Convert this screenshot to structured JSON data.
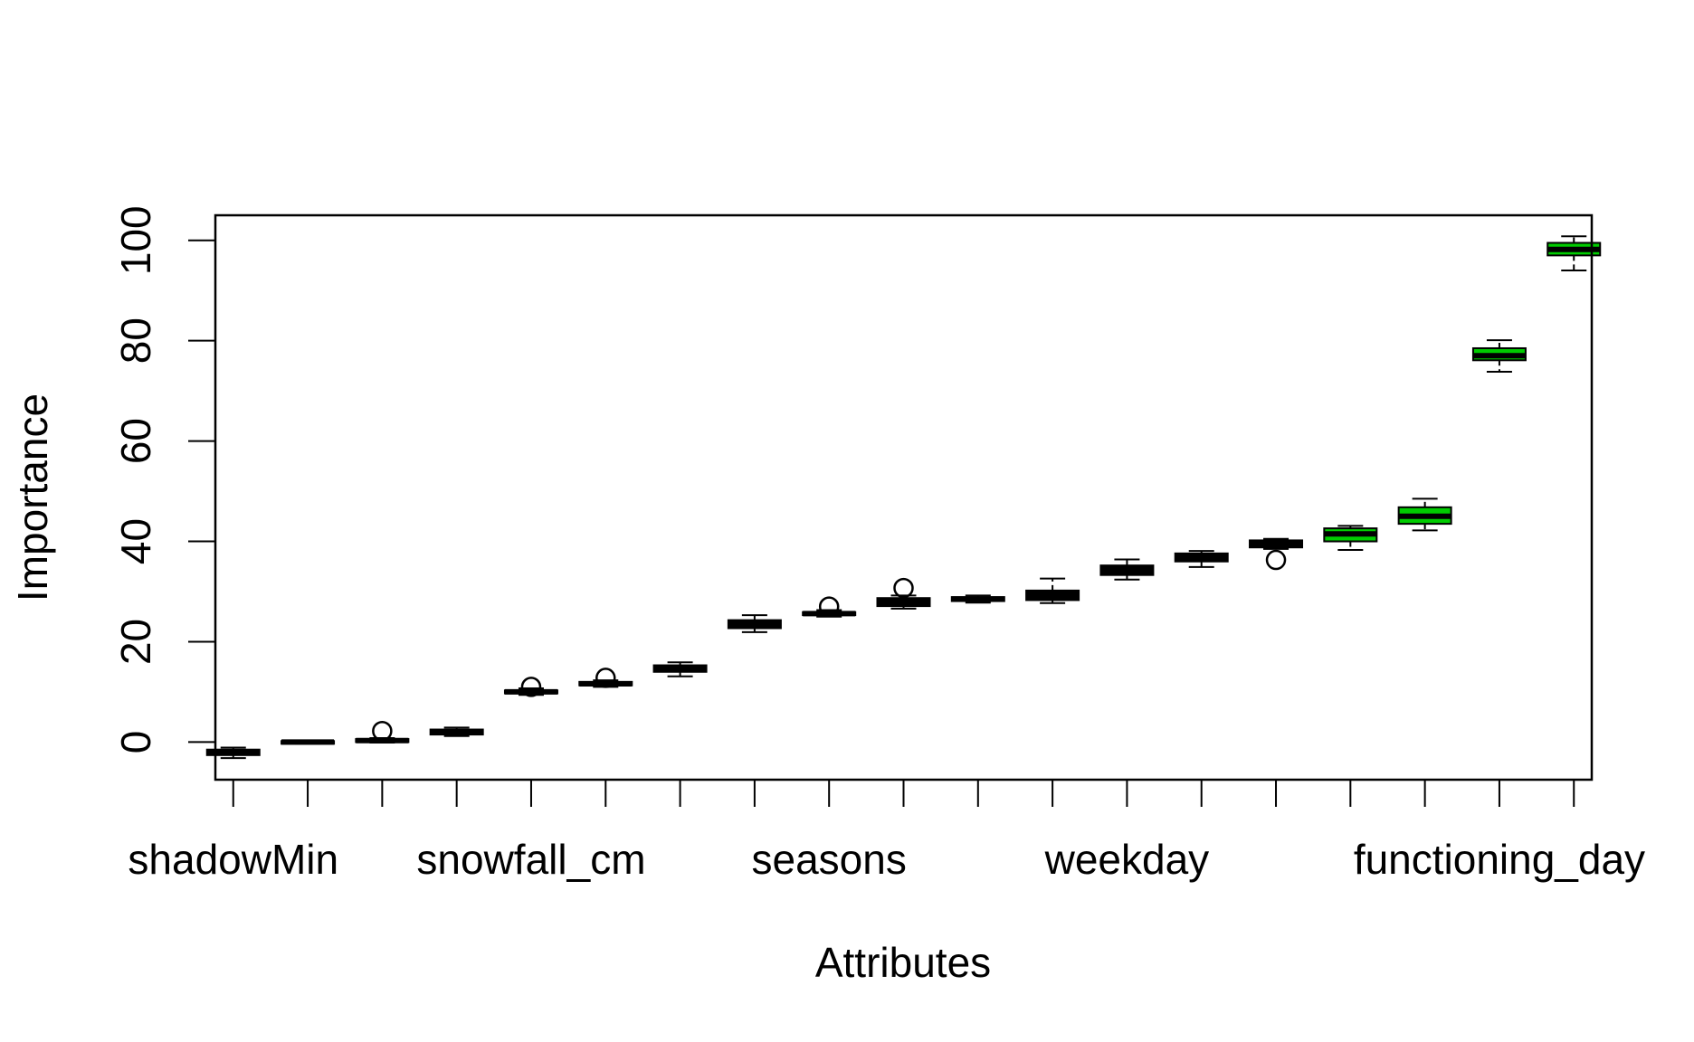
{
  "chart_data": {
    "type": "box",
    "title": "",
    "xlabel": "Attributes",
    "ylabel": "Importance",
    "ylim": [
      -7.5,
      105
    ],
    "yticks": [
      0,
      20,
      40,
      60,
      80,
      100
    ],
    "x_tick_labels": [
      {
        "index": 1,
        "label": "shadowMin"
      },
      {
        "index": 5,
        "label": "snowfall_cm"
      },
      {
        "index": 9,
        "label": "seasons"
      },
      {
        "index": 13,
        "label": "weekday"
      },
      {
        "index": 18,
        "label": "functioning_day"
      }
    ],
    "colors": {
      "rejected": "#000000",
      "confirmed": "#00cc00"
    },
    "boxes": [
      {
        "index": 1,
        "min": -3.2,
        "q1": -2.6,
        "median": -2.0,
        "q3": -1.5,
        "max": -1.1,
        "outliers": [],
        "status": "rejected"
      },
      {
        "index": 2,
        "min": -0.3,
        "q1": -0.2,
        "median": 0.0,
        "q3": 0.2,
        "max": 0.3,
        "outliers": [],
        "status": "rejected"
      },
      {
        "index": 3,
        "min": -0.1,
        "q1": 0.0,
        "median": 0.3,
        "q3": 0.6,
        "max": 0.8,
        "outliers": [
          2.2
        ],
        "status": "rejected"
      },
      {
        "index": 4,
        "min": 1.2,
        "q1": 1.5,
        "median": 2.0,
        "q3": 2.5,
        "max": 2.9,
        "outliers": [],
        "status": "rejected"
      },
      {
        "index": 5,
        "min": 9.4,
        "q1": 9.7,
        "median": 10.0,
        "q3": 10.3,
        "max": 10.7,
        "outliers": [
          11.0
        ],
        "status": "rejected"
      },
      {
        "index": 6,
        "min": 11.0,
        "q1": 11.3,
        "median": 11.6,
        "q3": 12.0,
        "max": 12.3,
        "outliers": [
          12.8
        ],
        "status": "rejected"
      },
      {
        "index": 7,
        "min": 13.1,
        "q1": 14.0,
        "median": 14.7,
        "q3": 15.3,
        "max": 15.9,
        "outliers": [],
        "status": "rejected"
      },
      {
        "index": 8,
        "min": 21.9,
        "q1": 22.7,
        "median": 23.5,
        "q3": 24.3,
        "max": 25.3,
        "outliers": [],
        "status": "rejected"
      },
      {
        "index": 9,
        "min": 25.0,
        "q1": 25.3,
        "median": 25.6,
        "q3": 25.9,
        "max": 26.3,
        "outliers": [
          27.0
        ],
        "status": "rejected"
      },
      {
        "index": 10,
        "min": 26.6,
        "q1": 27.1,
        "median": 27.9,
        "q3": 28.7,
        "max": 29.2,
        "outliers": [
          30.7
        ],
        "status": "rejected"
      },
      {
        "index": 11,
        "min": 27.8,
        "q1": 28.1,
        "median": 28.5,
        "q3": 28.9,
        "max": 29.2,
        "outliers": [],
        "status": "rejected"
      },
      {
        "index": 12,
        "min": 27.7,
        "q1": 28.3,
        "median": 29.2,
        "q3": 30.2,
        "max": 32.6,
        "outliers": [],
        "status": "rejected"
      },
      {
        "index": 13,
        "min": 32.4,
        "q1": 33.3,
        "median": 34.2,
        "q3": 35.2,
        "max": 36.4,
        "outliers": [],
        "status": "rejected"
      },
      {
        "index": 14,
        "min": 34.9,
        "q1": 36.0,
        "median": 36.8,
        "q3": 37.6,
        "max": 38.1,
        "outliers": [],
        "status": "rejected"
      },
      {
        "index": 15,
        "min": 38.5,
        "q1": 38.8,
        "median": 39.5,
        "q3": 40.2,
        "max": 40.5,
        "outliers": [
          36.3
        ],
        "status": "rejected"
      },
      {
        "index": 16,
        "min": 38.3,
        "q1": 40.0,
        "median": 41.5,
        "q3": 42.6,
        "max": 43.1,
        "outliers": [],
        "status": "confirmed"
      },
      {
        "index": 17,
        "min": 42.2,
        "q1": 43.5,
        "median": 45.0,
        "q3": 46.8,
        "max": 48.5,
        "outliers": [],
        "status": "confirmed"
      },
      {
        "index": 18,
        "min": 73.8,
        "q1": 76.1,
        "median": 77.0,
        "q3": 78.5,
        "max": 80.1,
        "outliers": [],
        "status": "confirmed"
      },
      {
        "index": 19,
        "min": 94.0,
        "q1": 97.0,
        "median": 98.2,
        "q3": 99.5,
        "max": 100.8,
        "outliers": [],
        "status": "confirmed"
      }
    ]
  }
}
